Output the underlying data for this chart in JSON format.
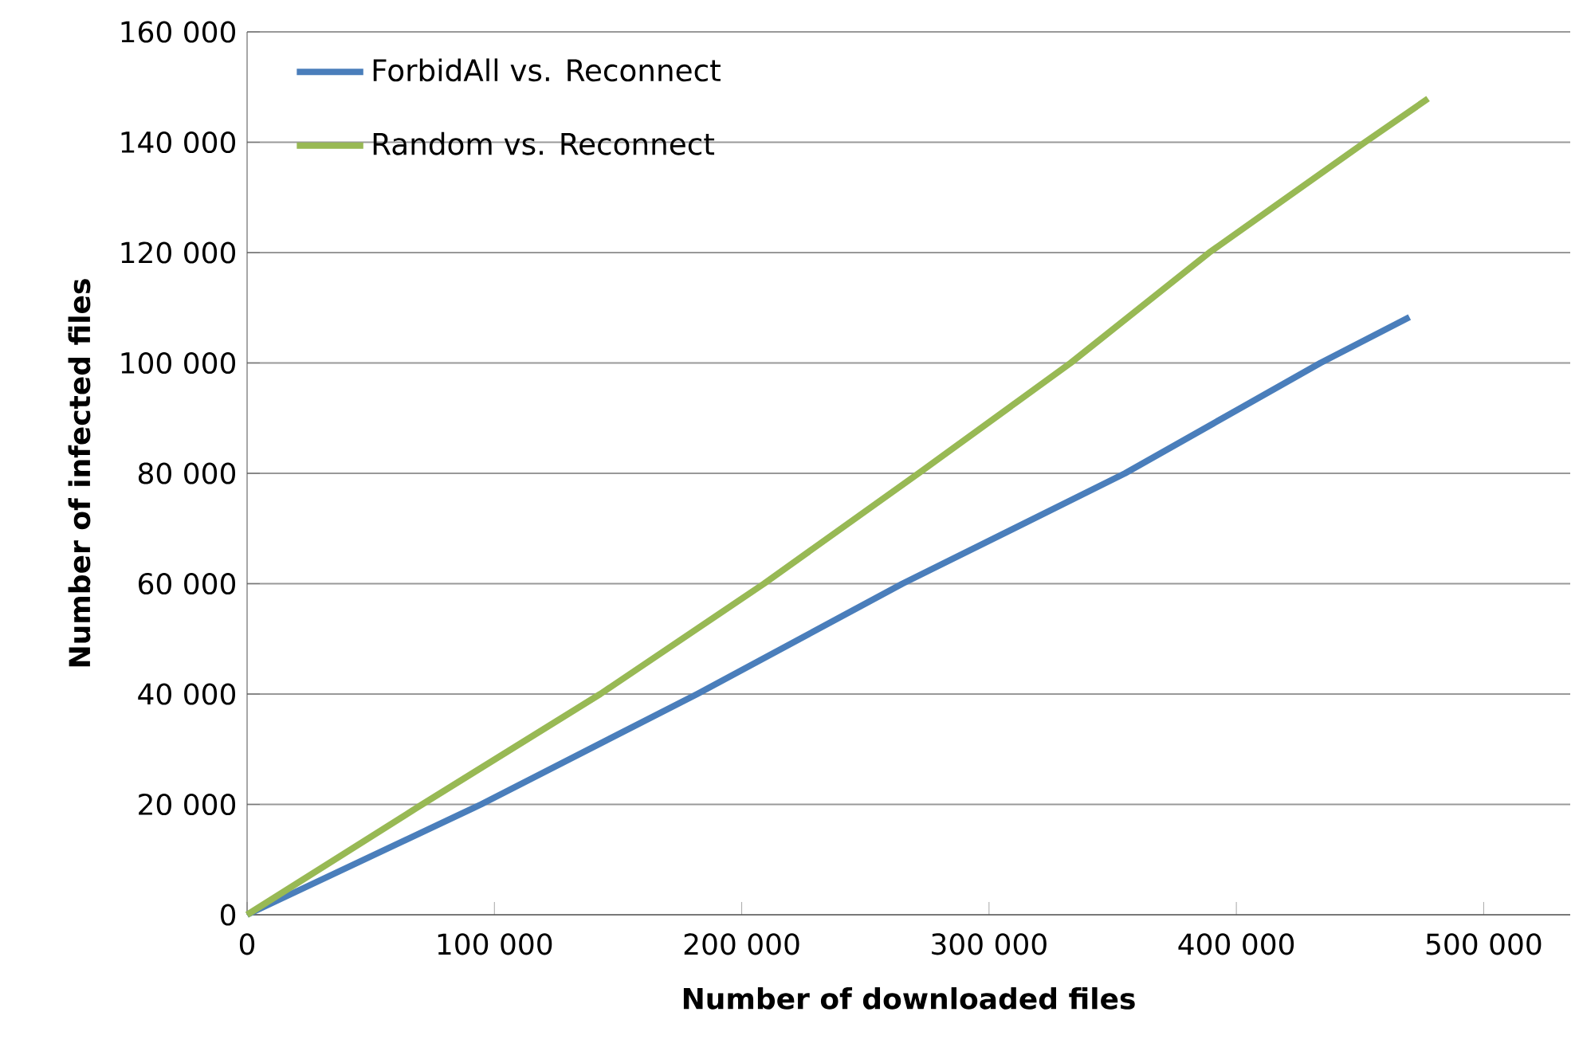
{
  "chart_data": {
    "type": "line",
    "xlabel": "Number of downloaded files",
    "ylabel": "Number of infected files",
    "xlim": [
      0,
      535000
    ],
    "ylim": [
      0,
      160000
    ],
    "xticks": [
      {
        "value": 0,
        "label": "0"
      },
      {
        "value": 100000,
        "label": "100 000"
      },
      {
        "value": 200000,
        "label": "200 000"
      },
      {
        "value": 300000,
        "label": "300 000"
      },
      {
        "value": 400000,
        "label": "400 000"
      },
      {
        "value": 500000,
        "label": "500 000"
      }
    ],
    "yticks": [
      {
        "value": 0,
        "label": "0"
      },
      {
        "value": 20000,
        "label": "20 000"
      },
      {
        "value": 40000,
        "label": "40 000"
      },
      {
        "value": 60000,
        "label": "60 000"
      },
      {
        "value": 80000,
        "label": "80 000"
      },
      {
        "value": 100000,
        "label": "100 000"
      },
      {
        "value": 120000,
        "label": "120 000"
      },
      {
        "value": 140000,
        "label": "140 000"
      },
      {
        "value": 160000,
        "label": "160 000"
      }
    ],
    "grid": "y",
    "legend": "top left",
    "marker": "none",
    "line_style": "solid",
    "series": [
      {
        "name": "ForbidAll vs. Reconnect",
        "color": "#4a7ebb",
        "x": [
          0,
          94600,
          182000,
          265000,
          355000,
          434000,
          470000
        ],
        "values": [
          0,
          20000,
          40000,
          60000,
          80000,
          100000,
          108300
        ]
      },
      {
        "name": "Random vs. Reconnect",
        "color": "#98b954",
        "x": [
          0,
          70800,
          142800,
          209000,
          271500,
          333000,
          389000,
          452000,
          477500
        ],
        "values": [
          0,
          20000,
          40000,
          60000,
          80000,
          100000,
          120000,
          140000,
          147900
        ]
      }
    ]
  }
}
